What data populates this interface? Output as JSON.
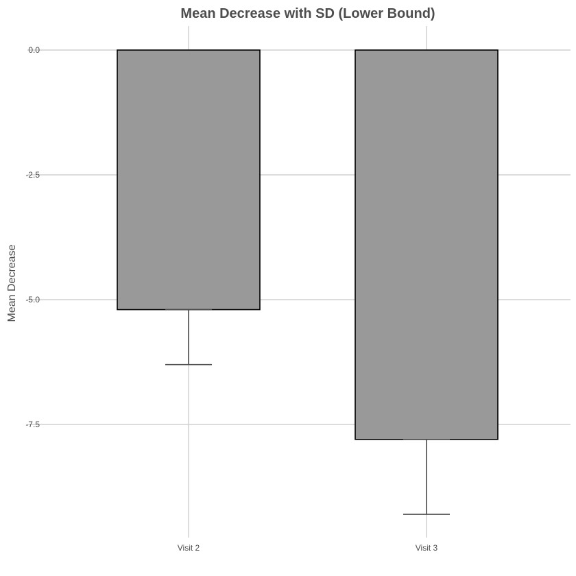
{
  "chart_data": {
    "type": "bar",
    "title": "Mean Decrease with SD (Lower Bound)",
    "xlabel": "",
    "ylabel": "Mean Decrease",
    "categories": [
      "Visit 2",
      "Visit 3"
    ],
    "values": [
      -5.2,
      -7.8
    ],
    "error_lower": [
      -6.3,
      -9.3
    ],
    "ylim": [
      -9.5,
      0.45
    ],
    "yticks": [
      0.0,
      -2.5,
      -5.0,
      -7.5
    ],
    "ytick_labels": [
      "0.0",
      "-2.5",
      "-5.0",
      "-7.5"
    ],
    "grid": true,
    "legend": "none",
    "colors": {
      "bar_fill": "#999999",
      "bar_stroke": "#000000",
      "errorbar": "#4d4d4d",
      "grid": "#d0d0d0"
    }
  }
}
